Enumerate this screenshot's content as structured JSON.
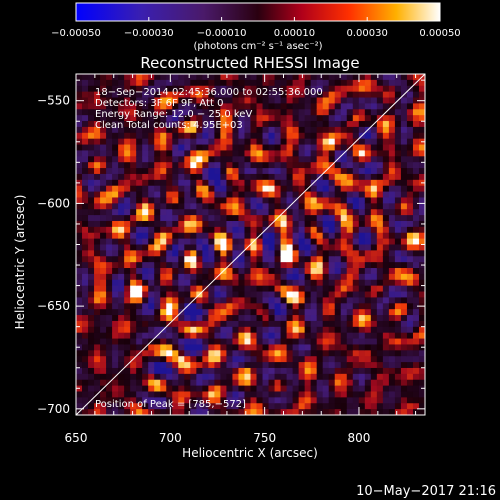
{
  "chart_data": {
    "type": "heatmap",
    "title": "Reconstructed RHESSI Image",
    "xlabel": "Heliocentric X (arcsec)",
    "ylabel": "Heliocentric Y (arcsec)",
    "xlim": [
      650,
      835
    ],
    "ylim": [
      -703,
      -537
    ],
    "x_ticks": [
      {
        "value": 650,
        "label": "650"
      },
      {
        "value": 700,
        "label": "700"
      },
      {
        "value": 750,
        "label": "750"
      },
      {
        "value": 800,
        "label": "800"
      }
    ],
    "y_ticks": [
      {
        "value": -550,
        "label": "−550"
      },
      {
        "value": -600,
        "label": "−600"
      },
      {
        "value": -650,
        "label": "−650"
      },
      {
        "value": -700,
        "label": "−700"
      }
    ],
    "colorbar": {
      "range": [
        -0.0005,
        0.0005
      ],
      "ticks": [
        {
          "value": -0.0005,
          "label": "−0.00050"
        },
        {
          "value": -0.0003,
          "label": "−0.00030"
        },
        {
          "value": -0.0001,
          "label": "−0.00010"
        },
        {
          "value": 0.0001,
          "label": "0.00010"
        },
        {
          "value": 0.0003,
          "label": "0.00030"
        },
        {
          "value": 0.0005,
          "label": "0.00050"
        }
      ],
      "unit_label": "(photons cm⁻² s⁻¹ asec⁻²)",
      "colormap": "blue-purple-red-yellow-white"
    },
    "annotations": [
      "18−Sep−2014 02:45:36.000 to 02:55:36.000",
      "Detectors: 3F 6F 9F, Att 0",
      "Energy Range: 12.0 − 25.0 keV",
      "Clean    Total counts: 4.95E+03"
    ],
    "peak_label": "Position of Peak = [785,−572]",
    "peak": {
      "x": 785,
      "y": -572
    },
    "limb_line": {
      "from": [
        650,
        -703
      ],
      "to": [
        835,
        -537
      ]
    }
  },
  "timestamp": "10−May−2017 21:16"
}
